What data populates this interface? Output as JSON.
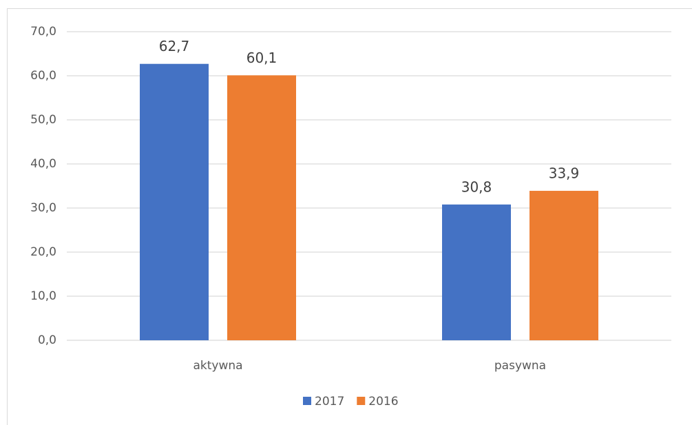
{
  "chart_data": {
    "type": "bar",
    "categories": [
      "aktywna",
      "pasywna"
    ],
    "series": [
      {
        "name": "2017",
        "color": "#4472c4",
        "values": [
          62.7,
          30.8
        ],
        "value_labels": [
          "62,7",
          "30,8"
        ]
      },
      {
        "name": "2016",
        "color": "#ed7d31",
        "values": [
          60.1,
          33.9
        ],
        "value_labels": [
          "60,1",
          "33,9"
        ]
      }
    ],
    "ylim": [
      0,
      70
    ],
    "yticks": [
      {
        "value": 0,
        "label": "0,0"
      },
      {
        "value": 10,
        "label": "10,0"
      },
      {
        "value": 20,
        "label": "20,0"
      },
      {
        "value": 30,
        "label": "30,0"
      },
      {
        "value": 40,
        "label": "40,0"
      },
      {
        "value": 50,
        "label": "50,0"
      },
      {
        "value": 60,
        "label": "60,0"
      },
      {
        "value": 70,
        "label": "70,0"
      }
    ],
    "grid": true,
    "legend": "bottom"
  }
}
